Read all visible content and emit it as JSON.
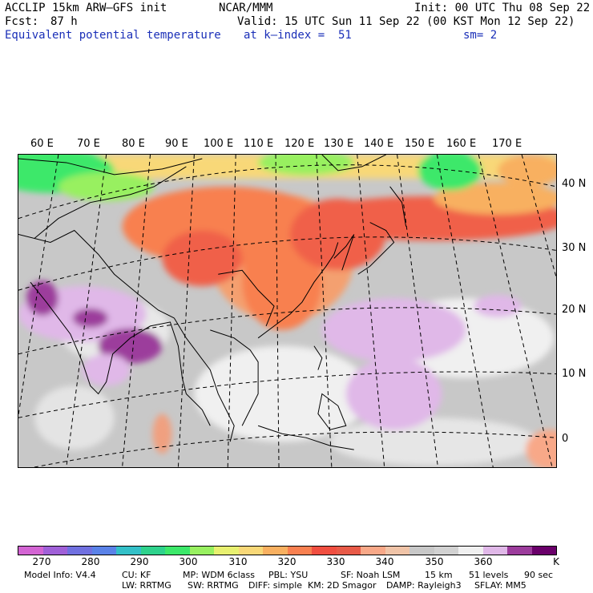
{
  "header": {
    "model": "ACCLIP 15km ARW–GFS init",
    "org": "NCAR/MMM",
    "init": "Init: 00 UTC Thu 08 Sep 22",
    "fcst_label": "Fcst:",
    "fcst_value": "87 h",
    "valid": "Valid: 15 UTC Sun 11 Sep 22 (00 KST Mon 12 Sep 22)",
    "field": "Equivalent potential temperature",
    "level": "at k–index =  51",
    "smooth": "sm= 2"
  },
  "map": {
    "lon_labels": [
      "60 E",
      "70 E",
      "80 E",
      "90 E",
      "100 E",
      "110 E",
      "120 E",
      "130 E",
      "140 E",
      "150 E",
      "160 E",
      "170 E"
    ],
    "lat_labels": [
      "40 N",
      "30 N",
      "20 N",
      "10 N",
      "0"
    ]
  },
  "colorbar": {
    "colors": [
      "#d364d3",
      "#a060d8",
      "#7070e0",
      "#5a82e8",
      "#33c0c8",
      "#2ed28c",
      "#3ce86a",
      "#98f060",
      "#e8f070",
      "#f8d878",
      "#f8b060",
      "#f88050",
      "#f04e40",
      "#e85a48",
      "#f8a888",
      "#f0c4a8",
      "#c8c8c8",
      "#d2d2d2",
      "#f0f0f0",
      "#e0b8e8",
      "#9c3c9c",
      "#6a006a"
    ],
    "ticks": [
      "270",
      "280",
      "290",
      "300",
      "310",
      "320",
      "330",
      "340",
      "350",
      "360"
    ],
    "unit": "K"
  },
  "footer": {
    "line1": [
      "Model Info: V4.4",
      "CU: KF",
      "MP: WDM 6class",
      "PBL: YSU",
      "SF: Noah LSM",
      "15 km",
      "51 levels",
      "90 sec"
    ],
    "line2": [
      "LW: RRTMG",
      "SW: RRTMG",
      "DIFF: simple",
      "KM: 2D Smagor",
      "DAMP: Rayleigh3",
      "SFLAY: MM5"
    ]
  }
}
